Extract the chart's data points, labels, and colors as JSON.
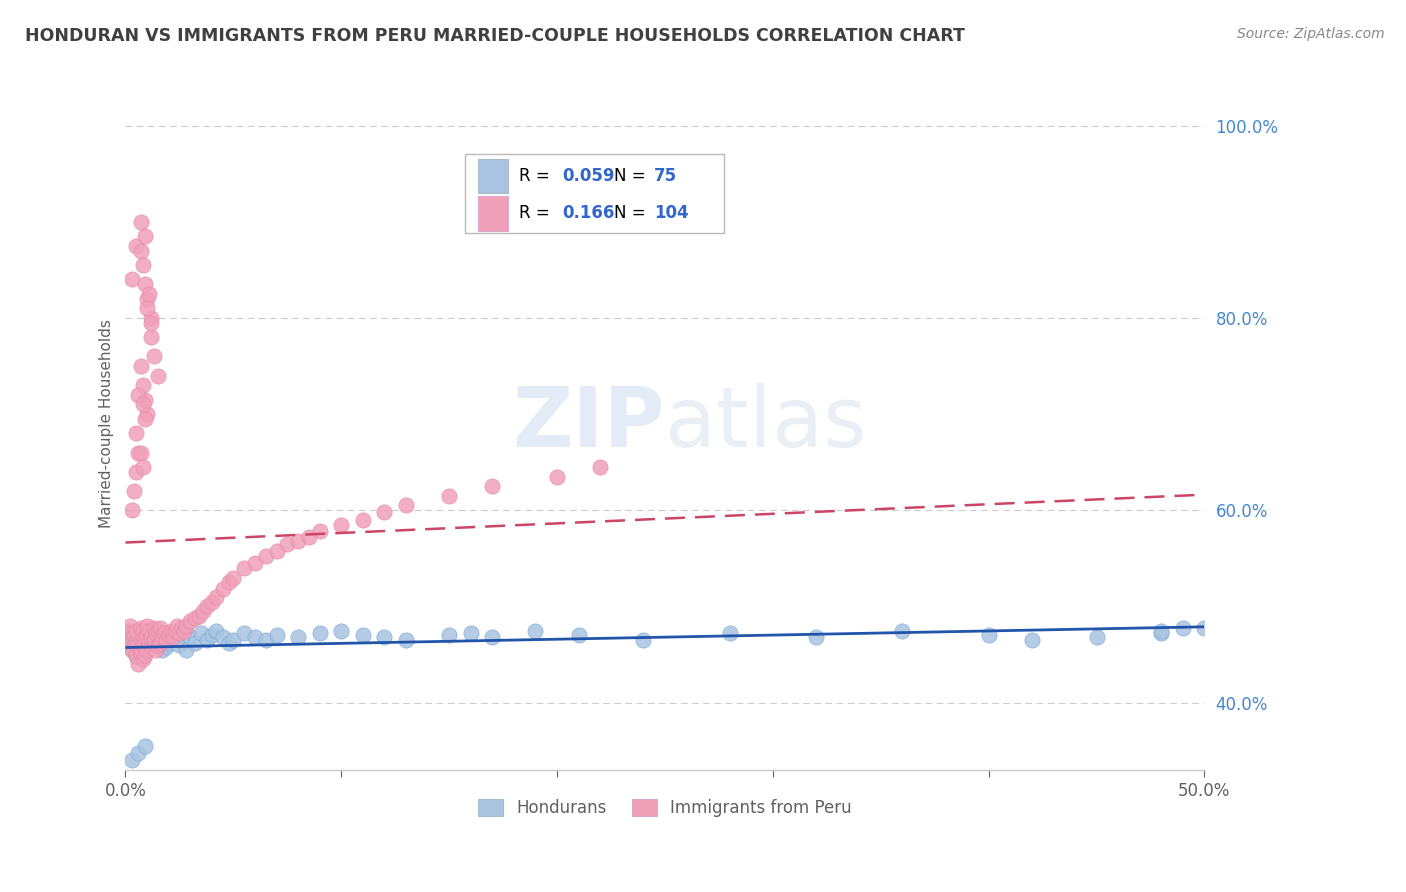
{
  "title": "HONDURAN VS IMMIGRANTS FROM PERU MARRIED-COUPLE HOUSEHOLDS CORRELATION CHART",
  "source": "Source: ZipAtlas.com",
  "ylabel": "Married-couple Households",
  "xlim": [
    0.0,
    0.5
  ],
  "ylim": [
    0.33,
    1.05
  ],
  "xticks": [
    0.0,
    0.1,
    0.2,
    0.3,
    0.4,
    0.5
  ],
  "xticklabels": [
    "0.0%",
    "",
    "",
    "",
    "",
    "50.0%"
  ],
  "yticks": [
    0.4,
    0.6,
    0.8,
    1.0
  ],
  "yticklabels": [
    "40.0%",
    "60.0%",
    "80.0%",
    "100.0%"
  ],
  "hondurans_color": "#a8c4e0",
  "peru_color": "#f0a0b8",
  "hondurans_line_color": "#2255aa",
  "peru_line_color": "#cc4466",
  "hondurans_R": 0.059,
  "hondurans_N": 75,
  "peru_R": 0.166,
  "peru_N": 104,
  "legend_label_1": "Hondurans",
  "legend_label_2": "Immigrants from Peru",
  "watermark": "ZIPatlas",
  "background_color": "#ffffff",
  "grid_color": "#cccccc",
  "title_color": "#404040",
  "source_color": "#888888",
  "axis_label_color": "#606060",
  "tick_color": "#606060",
  "ytick_color": "#4488cc",
  "legend_value_color": "#3366cc",
  "hon_x": [
    0.001,
    0.002,
    0.003,
    0.003,
    0.004,
    0.004,
    0.005,
    0.005,
    0.006,
    0.006,
    0.007,
    0.007,
    0.008,
    0.008,
    0.009,
    0.009,
    0.01,
    0.01,
    0.011,
    0.011,
    0.012,
    0.012,
    0.013,
    0.013,
    0.014,
    0.015,
    0.016,
    0.017,
    0.018,
    0.019,
    0.02,
    0.021,
    0.022,
    0.023,
    0.025,
    0.026,
    0.028,
    0.03,
    0.032,
    0.035,
    0.038,
    0.04,
    0.042,
    0.045,
    0.048,
    0.05,
    0.055,
    0.06,
    0.065,
    0.07,
    0.08,
    0.09,
    0.1,
    0.11,
    0.12,
    0.13,
    0.15,
    0.16,
    0.17,
    0.19,
    0.21,
    0.24,
    0.28,
    0.32,
    0.36,
    0.4,
    0.42,
    0.45,
    0.48,
    0.49,
    0.5,
    0.003,
    0.006,
    0.009,
    0.48
  ],
  "hon_y": [
    0.465,
    0.468,
    0.47,
    0.455,
    0.472,
    0.46,
    0.448,
    0.452,
    0.465,
    0.475,
    0.453,
    0.462,
    0.47,
    0.448,
    0.458,
    0.463,
    0.46,
    0.455,
    0.468,
    0.475,
    0.462,
    0.458,
    0.466,
    0.47,
    0.463,
    0.472,
    0.46,
    0.455,
    0.468,
    0.458,
    0.462,
    0.465,
    0.468,
    0.472,
    0.46,
    0.463,
    0.455,
    0.468,
    0.462,
    0.472,
    0.465,
    0.47,
    0.475,
    0.468,
    0.462,
    0.465,
    0.472,
    0.468,
    0.465,
    0.47,
    0.468,
    0.472,
    0.475,
    0.47,
    0.468,
    0.465,
    0.47,
    0.472,
    0.468,
    0.475,
    0.47,
    0.465,
    0.472,
    0.468,
    0.475,
    0.47,
    0.465,
    0.468,
    0.472,
    0.478,
    0.478,
    0.34,
    0.348,
    0.355,
    0.475
  ],
  "peru_x": [
    0.001,
    0.001,
    0.002,
    0.002,
    0.003,
    0.003,
    0.003,
    0.004,
    0.004,
    0.005,
    0.005,
    0.005,
    0.006,
    0.006,
    0.007,
    0.007,
    0.007,
    0.008,
    0.008,
    0.008,
    0.009,
    0.009,
    0.01,
    0.01,
    0.01,
    0.011,
    0.011,
    0.012,
    0.012,
    0.013,
    0.013,
    0.014,
    0.014,
    0.015,
    0.015,
    0.016,
    0.016,
    0.017,
    0.018,
    0.019,
    0.02,
    0.021,
    0.022,
    0.023,
    0.024,
    0.025,
    0.026,
    0.027,
    0.028,
    0.03,
    0.032,
    0.034,
    0.036,
    0.038,
    0.04,
    0.042,
    0.045,
    0.048,
    0.05,
    0.055,
    0.06,
    0.065,
    0.07,
    0.075,
    0.08,
    0.085,
    0.09,
    0.1,
    0.11,
    0.12,
    0.13,
    0.15,
    0.17,
    0.2,
    0.22,
    0.003,
    0.005,
    0.007,
    0.009,
    0.01,
    0.012,
    0.012,
    0.013,
    0.015,
    0.007,
    0.008,
    0.009,
    0.01,
    0.011,
    0.012,
    0.007,
    0.008,
    0.009,
    0.01,
    0.006,
    0.005,
    0.004,
    0.003,
    0.006,
    0.008,
    0.009,
    0.005,
    0.007,
    0.008
  ],
  "peru_y": [
    0.468,
    0.475,
    0.462,
    0.48,
    0.455,
    0.465,
    0.472,
    0.458,
    0.47,
    0.448,
    0.462,
    0.475,
    0.44,
    0.46,
    0.452,
    0.465,
    0.478,
    0.445,
    0.46,
    0.475,
    0.45,
    0.468,
    0.455,
    0.47,
    0.48,
    0.462,
    0.475,
    0.458,
    0.468,
    0.465,
    0.478,
    0.455,
    0.472,
    0.46,
    0.475,
    0.462,
    0.478,
    0.468,
    0.472,
    0.465,
    0.47,
    0.475,
    0.468,
    0.475,
    0.48,
    0.472,
    0.478,
    0.475,
    0.48,
    0.485,
    0.488,
    0.49,
    0.495,
    0.5,
    0.505,
    0.51,
    0.518,
    0.525,
    0.53,
    0.54,
    0.545,
    0.552,
    0.558,
    0.565,
    0.568,
    0.572,
    0.578,
    0.585,
    0.59,
    0.598,
    0.605,
    0.615,
    0.625,
    0.635,
    0.645,
    0.84,
    0.875,
    0.9,
    0.835,
    0.82,
    0.8,
    0.78,
    0.76,
    0.74,
    0.87,
    0.855,
    0.885,
    0.81,
    0.825,
    0.795,
    0.75,
    0.73,
    0.715,
    0.7,
    0.66,
    0.64,
    0.62,
    0.6,
    0.72,
    0.71,
    0.695,
    0.68,
    0.66,
    0.645
  ]
}
